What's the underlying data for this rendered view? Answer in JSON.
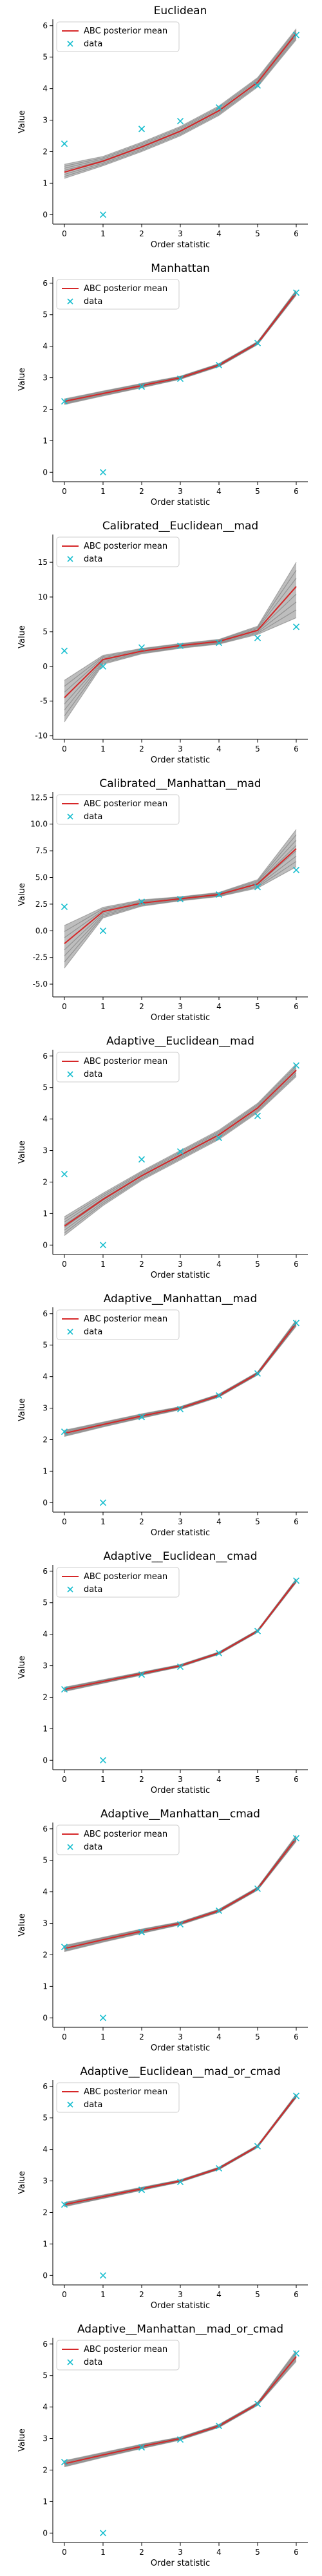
{
  "figure": {
    "legend_mean_label": "ABC posterior mean",
    "legend_data_label": "data",
    "colors": {
      "posterior": "#444444",
      "mean": "#d62728",
      "data": "#17becf",
      "axis": "#000000"
    }
  },
  "chart_data": [
    {
      "type": "line",
      "title": "Euclidean",
      "xlabel": "Order statistic",
      "ylabel": "Value",
      "x": [
        0,
        1,
        2,
        3,
        4,
        5,
        6
      ],
      "xlim": [
        -0.3,
        6.3
      ],
      "ylim": [
        -0.3,
        6.2
      ],
      "yticks": [
        0,
        1,
        2,
        3,
        4,
        5,
        6
      ],
      "legend": "upper left",
      "grid": false,
      "series": [
        {
          "name": "ABC posterior mean",
          "values": [
            1.35,
            1.7,
            2.15,
            2.65,
            3.3,
            4.2,
            5.75
          ]
        },
        {
          "name": "data",
          "marker": "x",
          "values": [
            2.25,
            0.0,
            2.72,
            2.97,
            3.4,
            4.1,
            5.7
          ]
        }
      ],
      "posterior_band_low": [
        1.15,
        1.55,
        2.0,
        2.5,
        3.15,
        4.05,
        5.55
      ],
      "posterior_band_high": [
        1.6,
        1.85,
        2.3,
        2.8,
        3.45,
        4.35,
        5.9
      ]
    },
    {
      "type": "line",
      "title": "Manhattan",
      "xlabel": "Order statistic",
      "ylabel": "Value",
      "x": [
        0,
        1,
        2,
        3,
        4,
        5,
        6
      ],
      "xlim": [
        -0.3,
        6.3
      ],
      "ylim": [
        -0.3,
        6.2
      ],
      "yticks": [
        0,
        1,
        2,
        3,
        4,
        5,
        6
      ],
      "legend": "upper left",
      "grid": false,
      "series": [
        {
          "name": "ABC posterior mean",
          "values": [
            2.25,
            2.5,
            2.75,
            3.0,
            3.4,
            4.1,
            5.7
          ]
        },
        {
          "name": "data",
          "marker": "x",
          "values": [
            2.25,
            0.0,
            2.72,
            2.97,
            3.4,
            4.1,
            5.7
          ]
        }
      ],
      "posterior_band_low": [
        2.15,
        2.42,
        2.68,
        2.95,
        3.35,
        4.05,
        5.62
      ],
      "posterior_band_high": [
        2.33,
        2.58,
        2.82,
        3.05,
        3.45,
        4.15,
        5.78
      ]
    },
    {
      "type": "line",
      "title": "Calibrated__Euclidean__mad",
      "xlabel": "Order statistic",
      "ylabel": "Value",
      "x": [
        0,
        1,
        2,
        3,
        4,
        5,
        6
      ],
      "xlim": [
        -0.3,
        6.3
      ],
      "ylim": [
        -10.5,
        19
      ],
      "yticks": [
        -10,
        -5,
        0,
        5,
        10,
        15
      ],
      "legend": "upper left",
      "grid": false,
      "series": [
        {
          "name": "ABC posterior mean",
          "values": [
            -4.5,
            1.0,
            2.2,
            3.0,
            3.6,
            5.2,
            11.5
          ]
        },
        {
          "name": "data",
          "marker": "x",
          "values": [
            2.25,
            0.0,
            2.72,
            2.97,
            3.4,
            4.1,
            5.7
          ]
        }
      ],
      "posterior_band_low": [
        -8.0,
        0.3,
        1.8,
        2.6,
        3.2,
        4.6,
        7.0
      ],
      "posterior_band_high": [
        -2.0,
        1.6,
        2.6,
        3.3,
        3.9,
        5.8,
        15.0
      ]
    },
    {
      "type": "line",
      "title": "Calibrated__Manhattan__mad",
      "xlabel": "Order statistic",
      "ylabel": "Value",
      "x": [
        0,
        1,
        2,
        3,
        4,
        5,
        6
      ],
      "xlim": [
        -0.3,
        6.3
      ],
      "ylim": [
        -6.2,
        13
      ],
      "yticks": [
        -5.0,
        -2.5,
        0.0,
        2.5,
        5.0,
        7.5,
        10.0,
        12.5
      ],
      "legend": "upper left",
      "grid": false,
      "series": [
        {
          "name": "ABC posterior mean",
          "values": [
            -1.2,
            1.8,
            2.6,
            3.0,
            3.4,
            4.4,
            7.7
          ]
        },
        {
          "name": "data",
          "marker": "x",
          "values": [
            2.25,
            0.0,
            2.72,
            2.97,
            3.4,
            4.1,
            5.7
          ]
        }
      ],
      "posterior_band_low": [
        -3.5,
        1.2,
        2.3,
        2.8,
        3.2,
        4.0,
        6.0
      ],
      "posterior_band_high": [
        0.5,
        2.2,
        2.9,
        3.2,
        3.6,
        4.8,
        9.5
      ]
    },
    {
      "type": "line",
      "title": "Adaptive__Euclidean__mad",
      "xlabel": "Order statistic",
      "ylabel": "Value",
      "x": [
        0,
        1,
        2,
        3,
        4,
        5,
        6
      ],
      "xlim": [
        -0.3,
        6.3
      ],
      "ylim": [
        -0.3,
        6.2
      ],
      "yticks": [
        0,
        1,
        2,
        3,
        4,
        5,
        6
      ],
      "legend": "upper left",
      "grid": false,
      "series": [
        {
          "name": "ABC posterior mean",
          "values": [
            0.6,
            1.45,
            2.2,
            2.85,
            3.5,
            4.35,
            5.55
          ]
        },
        {
          "name": "data",
          "marker": "x",
          "values": [
            2.25,
            0.0,
            2.72,
            2.97,
            3.4,
            4.1,
            5.7
          ]
        }
      ],
      "posterior_band_low": [
        0.3,
        1.25,
        2.05,
        2.7,
        3.35,
        4.2,
        5.35
      ],
      "posterior_band_high": [
        0.9,
        1.65,
        2.35,
        3.0,
        3.65,
        4.5,
        5.75
      ]
    },
    {
      "type": "line",
      "title": "Adaptive__Manhattan__mad",
      "xlabel": "Order statistic",
      "ylabel": "Value",
      "x": [
        0,
        1,
        2,
        3,
        4,
        5,
        6
      ],
      "xlim": [
        -0.3,
        6.3
      ],
      "ylim": [
        -0.3,
        6.2
      ],
      "yticks": [
        0,
        1,
        2,
        3,
        4,
        5,
        6
      ],
      "legend": "upper left",
      "grid": false,
      "series": [
        {
          "name": "ABC posterior mean",
          "values": [
            2.2,
            2.48,
            2.75,
            3.0,
            3.4,
            4.1,
            5.7
          ]
        },
        {
          "name": "data",
          "marker": "x",
          "values": [
            2.25,
            0.0,
            2.72,
            2.97,
            3.4,
            4.1,
            5.7
          ]
        }
      ],
      "posterior_band_low": [
        2.1,
        2.4,
        2.68,
        2.95,
        3.35,
        4.05,
        5.6
      ],
      "posterior_band_high": [
        2.3,
        2.56,
        2.82,
        3.05,
        3.45,
        4.15,
        5.8
      ]
    },
    {
      "type": "line",
      "title": "Adaptive__Euclidean__cmad",
      "xlabel": "Order statistic",
      "ylabel": "Value",
      "x": [
        0,
        1,
        2,
        3,
        4,
        5,
        6
      ],
      "xlim": [
        -0.3,
        6.3
      ],
      "ylim": [
        -0.3,
        6.2
      ],
      "yticks": [
        0,
        1,
        2,
        3,
        4,
        5,
        6
      ],
      "legend": "upper left",
      "grid": false,
      "series": [
        {
          "name": "ABC posterior mean",
          "values": [
            2.25,
            2.5,
            2.75,
            3.0,
            3.4,
            4.1,
            5.7
          ]
        },
        {
          "name": "data",
          "marker": "x",
          "values": [
            2.25,
            0.0,
            2.72,
            2.97,
            3.4,
            4.1,
            5.7
          ]
        }
      ],
      "posterior_band_low": [
        2.18,
        2.44,
        2.7,
        2.96,
        3.36,
        4.06,
        5.64
      ],
      "posterior_band_high": [
        2.32,
        2.56,
        2.8,
        3.04,
        3.44,
        4.14,
        5.76
      ]
    },
    {
      "type": "line",
      "title": "Adaptive__Manhattan__cmad",
      "xlabel": "Order statistic",
      "ylabel": "Value",
      "x": [
        0,
        1,
        2,
        3,
        4,
        5,
        6
      ],
      "xlim": [
        -0.3,
        6.3
      ],
      "ylim": [
        -0.3,
        6.2
      ],
      "yticks": [
        0,
        1,
        2,
        3,
        4,
        5,
        6
      ],
      "legend": "upper left",
      "grid": false,
      "series": [
        {
          "name": "ABC posterior mean",
          "values": [
            2.2,
            2.48,
            2.75,
            3.0,
            3.4,
            4.1,
            5.7
          ]
        },
        {
          "name": "data",
          "marker": "x",
          "values": [
            2.25,
            0.0,
            2.72,
            2.97,
            3.4,
            4.1,
            5.7
          ]
        }
      ],
      "posterior_band_low": [
        2.1,
        2.4,
        2.68,
        2.95,
        3.35,
        4.05,
        5.6
      ],
      "posterior_band_high": [
        2.3,
        2.56,
        2.82,
        3.05,
        3.45,
        4.15,
        5.8
      ]
    },
    {
      "type": "line",
      "title": "Adaptive__Euclidean__mad_or_cmad",
      "xlabel": "Order statistic",
      "ylabel": "Value",
      "x": [
        0,
        1,
        2,
        3,
        4,
        5,
        6
      ],
      "xlim": [
        -0.3,
        6.3
      ],
      "ylim": [
        -0.3,
        6.2
      ],
      "yticks": [
        0,
        1,
        2,
        3,
        4,
        5,
        6
      ],
      "legend": "upper left",
      "grid": false,
      "series": [
        {
          "name": "ABC posterior mean",
          "values": [
            2.25,
            2.5,
            2.75,
            3.0,
            3.4,
            4.1,
            5.7
          ]
        },
        {
          "name": "data",
          "marker": "x",
          "values": [
            2.25,
            0.0,
            2.72,
            2.97,
            3.4,
            4.1,
            5.7
          ]
        }
      ],
      "posterior_band_low": [
        2.18,
        2.44,
        2.7,
        2.96,
        3.36,
        4.06,
        5.64
      ],
      "posterior_band_high": [
        2.32,
        2.56,
        2.8,
        3.04,
        3.44,
        4.14,
        5.76
      ]
    },
    {
      "type": "line",
      "title": "Adaptive__Manhattan__mad_or_cmad",
      "xlabel": "Order statistic",
      "ylabel": "Value",
      "x": [
        0,
        1,
        2,
        3,
        4,
        5,
        6
      ],
      "xlim": [
        -0.3,
        6.3
      ],
      "ylim": [
        -0.3,
        6.2
      ],
      "yticks": [
        0,
        1,
        2,
        3,
        4,
        5,
        6
      ],
      "legend": "upper left",
      "grid": false,
      "series": [
        {
          "name": "ABC posterior mean",
          "values": [
            2.2,
            2.48,
            2.75,
            3.0,
            3.4,
            4.1,
            5.6
          ]
        },
        {
          "name": "data",
          "marker": "x",
          "values": [
            2.25,
            0.0,
            2.72,
            2.97,
            3.4,
            4.1,
            5.7
          ]
        }
      ],
      "posterior_band_low": [
        2.1,
        2.4,
        2.68,
        2.95,
        3.35,
        4.05,
        5.45
      ],
      "posterior_band_high": [
        2.3,
        2.56,
        2.82,
        3.05,
        3.45,
        4.15,
        5.8
      ]
    }
  ]
}
